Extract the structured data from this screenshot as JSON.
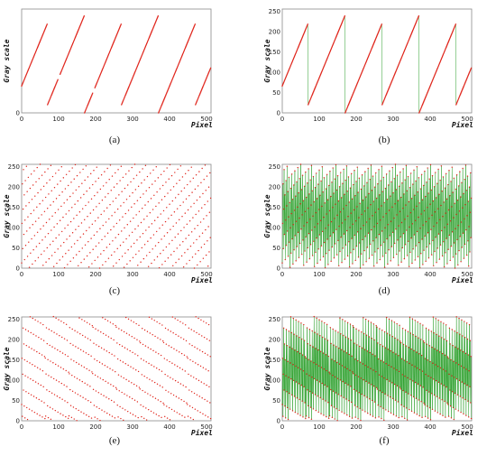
{
  "colors": {
    "red": "#e0241b",
    "green": "#2ca02c",
    "axis": "#8a8a8a",
    "text": "#111111"
  },
  "chart_data": [
    {
      "id": "a",
      "caption": "(a)",
      "type": "scatter",
      "ylabel": "Gray scale",
      "xlabel": "Pixel",
      "xlim": [
        0,
        512
      ],
      "ylim": [
        0,
        255
      ],
      "xticks": [
        0,
        100,
        200,
        300,
        400,
        500
      ],
      "yticks": [
        0,
        50,
        100,
        150,
        200,
        250
      ],
      "show_y_tick_labels": false,
      "lines": false,
      "series": [
        {
          "kind": "sawtooth",
          "color": "red",
          "period": 100,
          "start": 10,
          "offset": 30,
          "slope": 2.2,
          "gap_after": [
            98,
            192
          ],
          "points": 512
        }
      ]
    },
    {
      "id": "b",
      "caption": "(b)",
      "type": "line",
      "ylabel": "Gray scale",
      "xlabel": "Pixel",
      "xlim": [
        0,
        512
      ],
      "ylim": [
        0,
        255
      ],
      "xticks": [
        0,
        100,
        200,
        300,
        400,
        500
      ],
      "yticks": [
        0,
        50,
        100,
        150,
        200,
        250
      ],
      "show_y_tick_labels": true,
      "lines": true,
      "series": [
        {
          "kind": "sawtooth",
          "color": "red",
          "line_color": "green",
          "period": 100,
          "start": 10,
          "offset": 30,
          "slope": 2.2,
          "points": 512
        }
      ]
    },
    {
      "id": "c",
      "caption": "(c)",
      "type": "scatter",
      "ylabel": "Gray scale",
      "xlabel": "Pixel",
      "xlim": [
        0,
        512
      ],
      "ylim": [
        0,
        255
      ],
      "xticks": [
        0,
        100,
        200,
        300,
        400,
        500
      ],
      "yticks": [
        0,
        50,
        100,
        150,
        200,
        250
      ],
      "show_y_tick_labels": true,
      "lines": false,
      "series": [
        {
          "kind": "modstep",
          "color": "red",
          "step": 97,
          "offset": 13,
          "points": 512
        }
      ]
    },
    {
      "id": "d",
      "caption": "(d)",
      "type": "line",
      "ylabel": "Gray scale",
      "xlabel": "Pixel",
      "xlim": [
        0,
        512
      ],
      "ylim": [
        0,
        255
      ],
      "xticks": [
        0,
        100,
        200,
        300,
        400,
        500
      ],
      "yticks": [
        0,
        50,
        100,
        150,
        200,
        250
      ],
      "show_y_tick_labels": true,
      "lines": true,
      "series": [
        {
          "kind": "modstep",
          "color": "red",
          "line_color": "green",
          "step": 97,
          "offset": 13,
          "points": 512
        }
      ]
    },
    {
      "id": "e",
      "caption": "(e)",
      "type": "scatter",
      "ylabel": "Gray scale",
      "xlabel": "Pixel",
      "xlim": [
        0,
        512
      ],
      "ylim": [
        0,
        255
      ],
      "xticks": [
        0,
        100,
        200,
        300,
        400,
        500
      ],
      "yticks": [
        0,
        50,
        100,
        150,
        200,
        250
      ],
      "show_y_tick_labels": true,
      "lines": false,
      "series": [
        {
          "kind": "bands",
          "color": "red",
          "step": 3,
          "band": 38,
          "slope": -0.55,
          "points": 512
        }
      ]
    },
    {
      "id": "f",
      "caption": "(f)",
      "type": "line",
      "ylabel": "Gray scale",
      "xlabel": "Pixel",
      "xlim": [
        0,
        512
      ],
      "ylim": [
        0,
        255
      ],
      "xticks": [
        0,
        100,
        200,
        300,
        400,
        500
      ],
      "yticks": [
        0,
        50,
        100,
        150,
        200,
        250
      ],
      "show_y_tick_labels": true,
      "lines": true,
      "series": [
        {
          "kind": "bands",
          "color": "red",
          "line_color": "green",
          "step": 3,
          "band": 38,
          "slope": -0.55,
          "points": 512
        }
      ]
    }
  ]
}
